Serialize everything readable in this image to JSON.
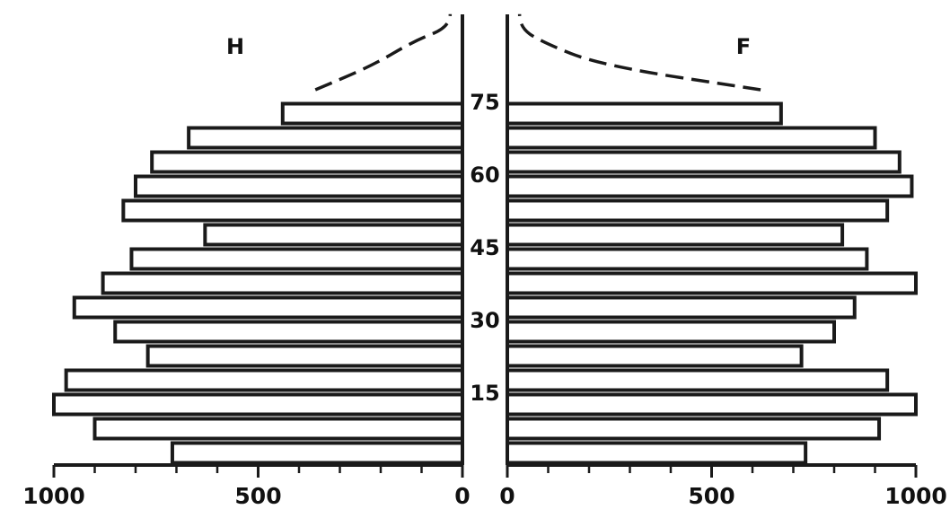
{
  "chart_data": {
    "type": "bar",
    "orientation": "horizontal",
    "layout": "population-pyramid",
    "title": "",
    "xlabel": "",
    "ylabel": "",
    "left_label": "H",
    "right_label": "F",
    "age_groups": [
      0,
      5,
      10,
      15,
      20,
      25,
      30,
      35,
      40,
      45,
      50,
      55,
      60,
      65,
      70
    ],
    "age_tick_labels": [
      "15",
      "30",
      "45",
      "60",
      "75"
    ],
    "age_tick_values": [
      15,
      30,
      45,
      60,
      75
    ],
    "x_tick_labels_left": [
      "1000",
      "500",
      "0"
    ],
    "x_tick_labels_right": [
      "0",
      "500",
      "1000"
    ],
    "x_tick_values": [
      1000,
      500,
      0
    ],
    "xlim": [
      0,
      1000
    ],
    "ylim": [
      0,
      75
    ],
    "series": [
      {
        "name": "H",
        "side": "left",
        "values": [
          710,
          900,
          1000,
          970,
          770,
          850,
          950,
          880,
          810,
          630,
          830,
          800,
          760,
          670,
          440
        ]
      },
      {
        "name": "F",
        "side": "right",
        "values": [
          730,
          910,
          1000,
          930,
          720,
          800,
          850,
          1000,
          880,
          820,
          930,
          990,
          960,
          900,
          670
        ]
      }
    ],
    "tail": {
      "style": "dashed",
      "left": [
        [
          75,
          360
        ],
        [
          80,
          220
        ],
        [
          85,
          120
        ],
        [
          88,
          30
        ]
      ],
      "right": [
        [
          75,
          620
        ],
        [
          80,
          230
        ],
        [
          85,
          80
        ],
        [
          88,
          30
        ]
      ]
    }
  }
}
